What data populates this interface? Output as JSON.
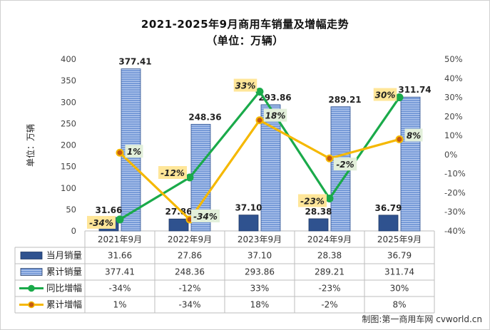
{
  "chart_data": {
    "type": "bar",
    "title": "2021-2025年9月商用车销量及增幅走势",
    "subtitle": "（单位：万辆）",
    "ylabel": "单位：万辆",
    "ylim": [
      0,
      400
    ],
    "yticks": [
      0,
      50,
      100,
      150,
      200,
      250,
      300,
      350,
      400
    ],
    "y2lim": [
      -40,
      50
    ],
    "y2ticks": [
      "-40%",
      "-30%",
      "-20%",
      "-10%",
      "0%",
      "10%",
      "20%",
      "30%",
      "40%",
      "50%"
    ],
    "categories": [
      "2021年9月",
      "2022年9月",
      "2023年9月",
      "2024年9月",
      "2025年9月"
    ],
    "series": [
      {
        "name": "当月销量",
        "kind": "bar",
        "values": [
          31.66,
          27.86,
          37.1,
          28.38,
          36.79
        ],
        "labels": [
          "31.66",
          "27.86",
          "37.10",
          "28.38",
          "36.79"
        ],
        "color": "#2f528f"
      },
      {
        "name": "累计销量",
        "kind": "bar",
        "values": [
          377.41,
          248.36,
          293.86,
          289.21,
          311.74
        ],
        "labels": [
          "377.41",
          "248.36",
          "293.86",
          "289.21",
          "311.74"
        ],
        "color": "#4a72b8"
      },
      {
        "name": "同比增幅",
        "kind": "line",
        "axis": "right",
        "values": [
          -34,
          -12,
          33,
          -23,
          30
        ],
        "labels": [
          "-34%",
          "-12%",
          "33%",
          "-23%",
          "30%"
        ],
        "color": "#1aaa4a"
      },
      {
        "name": "累计增幅",
        "kind": "line",
        "axis": "right",
        "values": [
          1,
          -34,
          18,
          -2,
          8
        ],
        "labels": [
          "1%",
          "-34%",
          "18%",
          "-2%",
          "8%"
        ],
        "color": "#f5b800"
      }
    ],
    "legend": "table-bottom",
    "grid": false
  },
  "source": "制图:第一商用车网 cvworld.cn"
}
